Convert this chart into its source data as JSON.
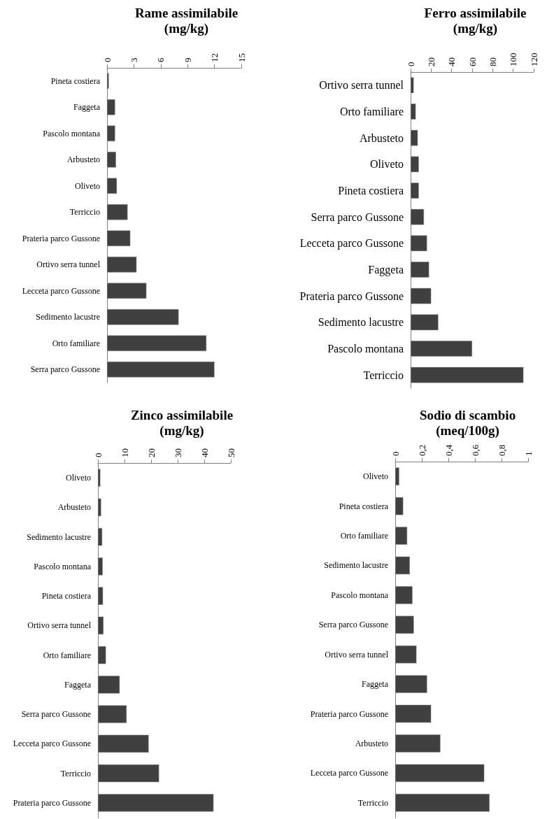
{
  "chart_data": [
    {
      "type": "bar",
      "orientation": "horizontal",
      "title": "Rame assimilabile\n(mg/kg)",
      "categories": [
        "Pineta costiera",
        "Faggeta",
        "Pascolo montana",
        "Arbusteto",
        "Oliveto",
        "Terriccio",
        "Prateria parco Gussone",
        "Ortivo serra tunnel",
        "Lecceta parco Gussone",
        "Sedimento lacustre",
        "Orto familiare",
        "Serra parco Gussone"
      ],
      "values": [
        0.2,
        0.9,
        0.9,
        1.0,
        1.1,
        2.3,
        2.6,
        3.3,
        4.4,
        8.0,
        11.1,
        12.0
      ],
      "color": "#404040",
      "xlim": [
        0,
        15
      ],
      "xticks": [
        0,
        3,
        6,
        9,
        12,
        15
      ]
    },
    {
      "type": "bar",
      "orientation": "horizontal",
      "title": "Ferro assimilabile\n(mg/kg)",
      "categories": [
        "Ortivo serra tunnel",
        "Orto familiare",
        "Arbusteto",
        "Oliveto",
        "Pineta costiera",
        "Serra parco Gussone",
        "Lecceta parco Gussone",
        "Faggeta",
        "Prateria parco Gussone",
        "Sedimento lacustre",
        "Pascolo montana",
        "Terriccio"
      ],
      "values": [
        3,
        5,
        7,
        8,
        8,
        13,
        16,
        18,
        20,
        27,
        60,
        110
      ],
      "color": "#404040",
      "xlim": [
        0,
        120
      ],
      "xticks": [
        0,
        20,
        40,
        60,
        80,
        100,
        120
      ]
    },
    {
      "type": "bar",
      "orientation": "horizontal",
      "title": "Zinco assimilabile\n(mg/kg)",
      "categories": [
        "Oliveto",
        "Arbusteto",
        "Sedimento lacustre",
        "Pascolo montana",
        "Pineta costiera",
        "Ortivo serra tunnel",
        "Orto familiare",
        "Faggeta",
        "Serra parco Gussone",
        "Lecceta parco Gussone",
        "Terriccio",
        "Prateria parco Gussone"
      ],
      "values": [
        0.9,
        1.2,
        1.6,
        1.8,
        1.9,
        2.1,
        3.0,
        8.2,
        10.8,
        19.1,
        23.0,
        43.5
      ],
      "color": "#404040",
      "xlim": [
        0,
        50
      ],
      "xticks": [
        0,
        10,
        20,
        30,
        40,
        50
      ]
    },
    {
      "type": "bar",
      "orientation": "horizontal",
      "title": "Sodio di scambio\n(meq/100g)",
      "categories": [
        "Oliveto",
        "Pineta costiera",
        "Orto familiare",
        "Sedimento lacustre",
        "Pascolo montana",
        "Serra parco Gussone",
        "Ortivo serra tunnel",
        "Faggeta",
        "Prateria parco Gussone",
        "Arbusteto",
        "Lecceta parco Gussone",
        "Terriccio"
      ],
      "values": [
        0.03,
        0.06,
        0.09,
        0.11,
        0.13,
        0.14,
        0.16,
        0.24,
        0.27,
        0.34,
        0.67,
        0.71
      ],
      "color": "#404040",
      "xlim": [
        0,
        1
      ],
      "xticks": [
        0,
        {
          "value": 0.2,
          "label": "0,2"
        },
        {
          "value": 0.4,
          "label": "0,4"
        },
        {
          "value": 0.6,
          "label": "0,6"
        },
        {
          "value": 0.8,
          "label": "0,8"
        },
        1
      ]
    }
  ]
}
